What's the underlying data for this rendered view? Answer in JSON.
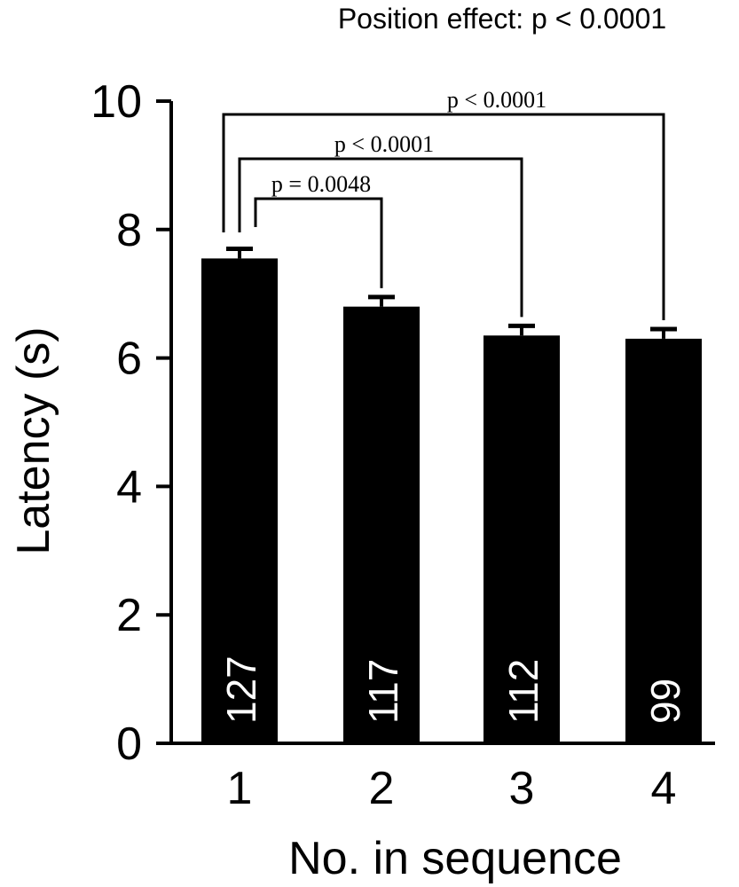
{
  "header": {
    "overall_stat": "Position effect: p < 0.0001"
  },
  "chart_data": {
    "type": "bar",
    "title": "",
    "xlabel": "No. in sequence",
    "ylabel": "Latency (s)",
    "ylim": [
      0,
      10
    ],
    "yticks": [
      0,
      2,
      4,
      6,
      8,
      10
    ],
    "ytick_labels": [
      "0",
      "2",
      "4",
      "6",
      "8",
      "10"
    ],
    "categories": [
      "1",
      "2",
      "3",
      "4"
    ],
    "values": [
      7.55,
      6.8,
      6.35,
      6.3
    ],
    "errors": [
      0.15,
      0.15,
      0.15,
      0.15
    ],
    "bar_labels": [
      "127",
      "117",
      "112",
      "99"
    ],
    "bar_color": "#000000",
    "grid": false,
    "comparisons": [
      {
        "from": "1",
        "to": "2",
        "label": "p = 0.0048"
      },
      {
        "from": "1",
        "to": "3",
        "label": "p < 0.0001"
      },
      {
        "from": "1",
        "to": "4",
        "label": "p < 0.0001"
      }
    ]
  }
}
